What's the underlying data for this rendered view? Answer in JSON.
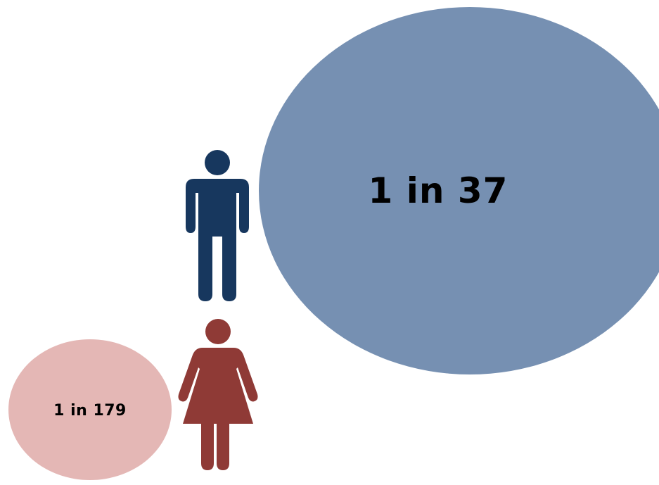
{
  "colors": {
    "male_bubble": "#7690b2",
    "female_bubble": "#e4b7b5",
    "male_icon": "#17375e",
    "female_icon": "#8f3a36",
    "text": "#000000"
  },
  "male": {
    "icon": "male-person-icon",
    "label": "1 in 37"
  },
  "female": {
    "icon": "female-person-icon",
    "label": "1 in 179"
  }
}
